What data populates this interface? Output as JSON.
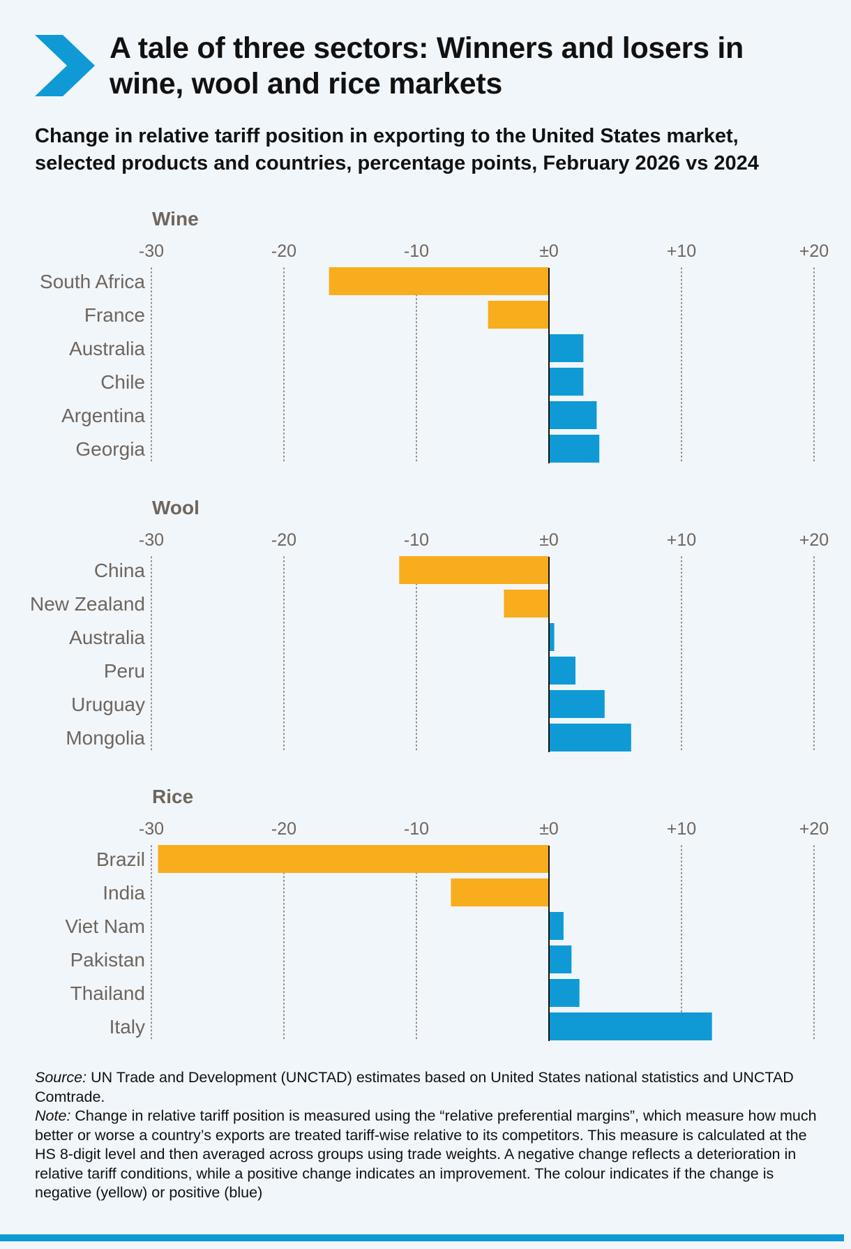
{
  "title": "A tale of three sectors: Winners and losers in wine, wool and rice markets",
  "subtitle": "Change in relative tariff position in exporting to the United States market, selected products and countries, percentage points, February 2026 vs 2024",
  "colors": {
    "negative": "#f8ad1d",
    "positive": "#0f9ad6",
    "accent": "#0f9ad6",
    "label": "#6e655d"
  },
  "chart_data": [
    {
      "type": "bar",
      "orientation": "horizontal",
      "title": "Wine",
      "categories": [
        "South Africa",
        "France",
        "Australia",
        "Chile",
        "Argentina",
        "Georgia"
      ],
      "values": [
        -16.6,
        -4.6,
        2.6,
        2.6,
        3.6,
        3.8
      ],
      "xlim": [
        -30,
        20
      ],
      "xticks": [
        -30,
        -20,
        -10,
        0,
        10,
        20
      ],
      "tick_labels": [
        "-30",
        "-20",
        "-10",
        "±0",
        "+10",
        "+20"
      ],
      "grid": "vertical dotted"
    },
    {
      "type": "bar",
      "orientation": "horizontal",
      "title": "Wool",
      "categories": [
        "China",
        "New Zealand",
        "Australia",
        "Peru",
        "Uruguay",
        "Mongolia"
      ],
      "values": [
        -11.3,
        -3.4,
        0.4,
        2.0,
        4.2,
        6.2
      ],
      "xlim": [
        -30,
        20
      ],
      "xticks": [
        -30,
        -20,
        -10,
        0,
        10,
        20
      ],
      "tick_labels": [
        "-30",
        "-20",
        "-10",
        "±0",
        "+10",
        "+20"
      ],
      "grid": "vertical dotted"
    },
    {
      "type": "bar",
      "orientation": "horizontal",
      "title": "Rice",
      "categories": [
        "Brazil",
        "India",
        "Viet Nam",
        "Pakistan",
        "Thailand",
        "Italy"
      ],
      "values": [
        -29.5,
        -7.4,
        1.1,
        1.7,
        2.3,
        12.3
      ],
      "xlim": [
        -30,
        20
      ],
      "xticks": [
        -30,
        -20,
        -10,
        0,
        10,
        20
      ],
      "tick_labels": [
        "-30",
        "-20",
        "-10",
        "±0",
        "+10",
        "+20"
      ],
      "grid": "vertical dotted"
    }
  ],
  "notes": {
    "source_label": "Source:",
    "source_text": " UN Trade and Development (UNCTAD) estimates based on United States national statistics and UNCTAD Comtrade.",
    "note_label": "Note:",
    "note_text": " Change in relative tariff position is measured using the “relative preferential margins”, which measure how much better or worse a country’s exports are treated tariff-wise relative to its competitors. This measure is calculated at the HS 8-digit level and then averaged across groups using trade weights. A negative change reflects a deterioration in relative tariff conditions, while a positive change indicates an improvement. The colour indicates if the change is negative (yellow) or positive (blue)"
  }
}
